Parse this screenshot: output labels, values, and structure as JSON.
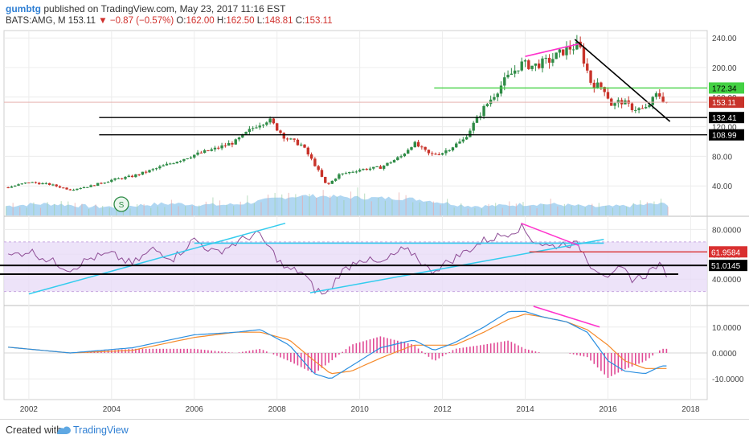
{
  "header": {
    "user": "gumbtg",
    "published_text": "published on TradingView.com, May 23, 2017 11:16 EST",
    "symbol": "BATS:AMG, M",
    "last": "153.11",
    "change": "−0.87 (−0.57%)",
    "ohlc": [
      {
        "label": "O:",
        "value": "162.00"
      },
      {
        "label": "H:",
        "value": "162.50"
      },
      {
        "label": "L:",
        "value": "148.81"
      },
      {
        "label": "C:",
        "value": "153.11"
      }
    ]
  },
  "footer": {
    "created": "Created with",
    "brand": "TradingView"
  },
  "colors": {
    "up": "#2e8b46",
    "down": "#c8332a",
    "grid": "#ececec",
    "green_line": "#43d143",
    "magenta": "#ff33cc",
    "cyan": "#33ccee",
    "rsi_band": "#e9dcf7",
    "rsi_line": "#8e4d96",
    "red_level": "#d93030",
    "macd": "#2b8fe0",
    "signal": "#f58a2a",
    "hist": "#e04a95",
    "volume": "#6fb7e8"
  },
  "chart_data": [
    {
      "type": "candlestick",
      "pane": "price",
      "symbol": "AMG",
      "interval": "M",
      "x_ticks": [
        "2002",
        "2004",
        "2006",
        "2008",
        "2010",
        "2012",
        "2014",
        "2016",
        "2018"
      ],
      "y_ticks": [
        "240.00",
        "200.00",
        "160.00",
        "120.00",
        "80.00",
        "40.00"
      ],
      "y_range": [
        0,
        250
      ],
      "price_labels": [
        {
          "value": 172.34,
          "text": "172.34",
          "color": "#43d143"
        },
        {
          "value": 153.11,
          "text": "153.11",
          "color": "#c8332a"
        },
        {
          "value": 132.41,
          "text": "132.41",
          "color": "#000000"
        },
        {
          "value": 108.99,
          "text": "108.99",
          "color": "#000000"
        }
      ],
      "close_series": {
        "x": [
          2001.5,
          2002.0,
          2002.5,
          2003.0,
          2003.5,
          2004.0,
          2004.5,
          2005.0,
          2005.5,
          2006.0,
          2006.5,
          2007.0,
          2007.5,
          2007.8,
          2008.2,
          2008.6,
          2008.9,
          2009.2,
          2009.5,
          2010.0,
          2010.5,
          2011.0,
          2011.3,
          2011.7,
          2012.0,
          2012.5,
          2013.0,
          2013.5,
          2013.9,
          2014.2,
          2014.6,
          2015.0,
          2015.3,
          2015.6,
          2015.9,
          2016.1,
          2016.3,
          2016.6,
          2016.9,
          2017.2,
          2017.4
        ],
        "y": [
          38,
          45,
          42,
          35,
          40,
          48,
          53,
          62,
          72,
          82,
          90,
          100,
          122,
          130,
          105,
          95,
          70,
          40,
          55,
          62,
          65,
          80,
          98,
          82,
          85,
          102,
          145,
          182,
          205,
          202,
          210,
          225,
          230,
          178,
          173,
          148,
          155,
          145,
          143,
          165,
          153
        ]
      },
      "volume_note": "volume histogram along bottom of price pane",
      "annotations": [
        {
          "kind": "horizontal",
          "value": 172.34,
          "from": 2011.8,
          "color": "#43d143"
        },
        {
          "kind": "horizontal",
          "value": 132.41,
          "from": 2003.7,
          "color": "#000000"
        },
        {
          "kind": "horizontal",
          "value": 108.99,
          "from": 2003.7,
          "color": "#000000"
        },
        {
          "kind": "trend",
          "points": [
            [
              2014.0,
              215
            ],
            [
              2015.3,
              232
            ]
          ],
          "color": "#ff33cc"
        },
        {
          "kind": "trend",
          "points": [
            [
              2015.2,
              238
            ],
            [
              2017.5,
              127
            ]
          ],
          "color": "#000000"
        }
      ]
    },
    {
      "type": "line",
      "pane": "rsi",
      "y_ticks": [
        "80.0000",
        "60.0000",
        "40.0000"
      ],
      "y_range": [
        20,
        90
      ],
      "levels": [
        {
          "value": 61.9584,
          "text": "61.9584",
          "color": "#d93030"
        },
        {
          "value": 51.0145,
          "text": "51.0145",
          "color": "#000000"
        }
      ],
      "band": [
        30,
        70
      ],
      "series": [
        {
          "x": [
            2001.5,
            2002.0,
            2002.5,
            2003.0,
            2003.5,
            2004.0,
            2004.5,
            2005.0,
            2005.5,
            2006.0,
            2006.5,
            2007.0,
            2007.5,
            2007.8,
            2008.2,
            2008.6,
            2008.9,
            2009.2,
            2009.5,
            2010.0,
            2010.5,
            2011.0,
            2011.3,
            2011.7,
            2012.0,
            2012.5,
            2013.0,
            2013.5,
            2013.9,
            2014.2,
            2014.6,
            2015.0,
            2015.3,
            2015.6,
            2015.9,
            2016.1,
            2016.3,
            2016.6,
            2016.9,
            2017.2,
            2017.4
          ],
          "y": [
            58,
            63,
            55,
            48,
            57,
            60,
            52,
            64,
            57,
            72,
            61,
            69,
            77,
            66,
            48,
            46,
            32,
            27,
            44,
            57,
            52,
            63,
            61,
            46,
            51,
            61,
            71,
            76,
            82,
            71,
            66,
            69,
            67,
            51,
            45,
            41,
            49,
            40,
            43,
            52,
            45
          ]
        }
      ],
      "annotations": [
        {
          "kind": "trend",
          "points": [
            [
              2002.0,
              28
            ],
            [
              2008.2,
              85
            ]
          ],
          "color": "#33ccee"
        },
        {
          "kind": "horizontal",
          "value": 69,
          "from": 2006.0,
          "to": 2015.9,
          "color": "#33ccee"
        },
        {
          "kind": "trend",
          "points": [
            [
              2008.8,
              29
            ],
            [
              2015.9,
              72
            ]
          ],
          "color": "#33ccee"
        },
        {
          "kind": "trend",
          "points": [
            [
              2013.9,
              85
            ],
            [
              2015.3,
              67
            ]
          ],
          "color": "#ff33cc"
        },
        {
          "kind": "horizontal",
          "value": 51.0145,
          "from": 2001.0,
          "color": "#000000"
        },
        {
          "kind": "horizontal",
          "value": 44,
          "from": 2001.0,
          "to": 2017.7,
          "color": "#000000"
        }
      ]
    },
    {
      "type": "line",
      "pane": "macd",
      "y_ticks": [
        "10.0000",
        "0.0000",
        "-10.0000"
      ],
      "y_range": [
        -18,
        18
      ],
      "series": [
        {
          "name": "",
          "x": [
            2001.0,
            2003.0,
            2004.5,
            2006.0,
            2007.0,
            2007.6,
            2008.3,
            2008.9,
            2009.3,
            2009.8,
            2010.5,
            2011.3,
            2011.8,
            2012.3,
            2013.0,
            2013.6,
            2014.0,
            2014.4,
            2015.0,
            2015.5,
            2016.0,
            2016.4,
            2016.9,
            2017.3
          ],
          "y": [
            3,
            0,
            2,
            7,
            8,
            9,
            3,
            -8,
            -10,
            -5,
            2,
            5,
            1,
            4,
            10,
            16,
            16,
            14,
            12,
            8,
            -3,
            -7,
            -8,
            -5
          ]
        },
        {
          "name": "",
          "x": [
            2001.0,
            2003.0,
            2004.5,
            2006.0,
            2007.0,
            2007.6,
            2008.3,
            2008.9,
            2009.3,
            2009.8,
            2010.5,
            2011.3,
            2011.8,
            2012.3,
            2013.0,
            2013.6,
            2014.0,
            2014.4,
            2015.0,
            2015.5,
            2016.0,
            2016.4,
            2016.9,
            2017.3
          ],
          "y": [
            3,
            0,
            1,
            6,
            8,
            8,
            5,
            -3,
            -8,
            -7,
            -2,
            3,
            3,
            3,
            8,
            13,
            15,
            14,
            12,
            9,
            3,
            -3,
            -6,
            -6
          ]
        }
      ],
      "annotations": [
        {
          "kind": "trend",
          "points": [
            [
              2014.2,
              18
            ],
            [
              2015.8,
              10
            ]
          ],
          "color": "#ff33cc"
        }
      ]
    }
  ]
}
